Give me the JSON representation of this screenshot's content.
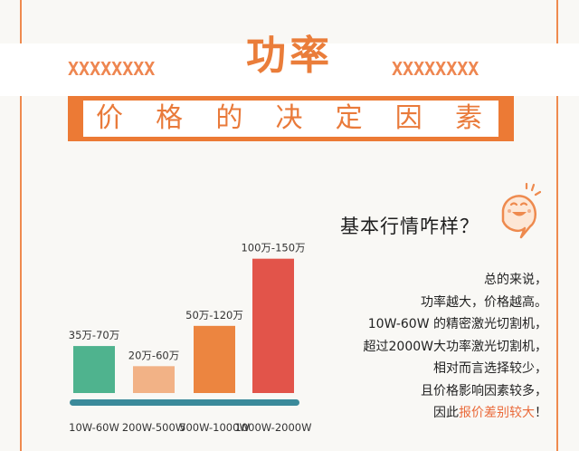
{
  "header": {
    "title": "功率",
    "x_left": "XXXXXXXX",
    "x_right": "XXXXXXXX",
    "subtitle_chars": [
      "价",
      "格",
      "的",
      "决",
      "定",
      "因",
      "素"
    ]
  },
  "aside": {
    "question": "基本行情咋样？",
    "lines": [
      "总的来说，",
      "功率越大，价格越高。",
      "10W-60W 的精密激光切割机，",
      "超过2000W大功率激光切割机，",
      "相对而言选择较少，",
      "且价格影响因素较多，"
    ],
    "last_line_prefix": "因此",
    "last_line_highlight": "报价差别较大",
    "last_line_suffix": "！"
  },
  "colors": {
    "accent": "#ea7d3a",
    "bar_green": "#4fb38e",
    "bar_peach": "#f2b286",
    "bar_orange": "#ec8540",
    "bar_red": "#e2544a",
    "axis": "#3b8a9a"
  },
  "chart_data": {
    "type": "bar",
    "categories": [
      "10W-60W",
      "200W-500W",
      "500W-1000W",
      "1000W-2000W"
    ],
    "values": [
      35,
      20,
      50,
      100
    ],
    "value_labels": [
      "35万-70万",
      "20万-60万",
      "50万-120万",
      "100万-150万"
    ],
    "series_colors": [
      "#4fb38e",
      "#f2b286",
      "#ec8540",
      "#e2544a"
    ],
    "ylim": [
      0,
      120
    ],
    "title": "",
    "xlabel": "",
    "ylabel": ""
  }
}
